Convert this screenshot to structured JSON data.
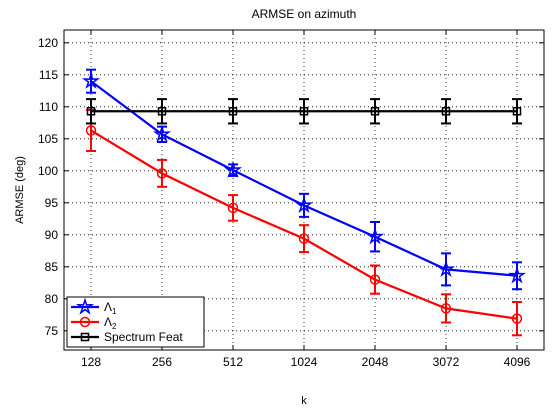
{
  "chart_data": {
    "type": "line",
    "title": "ARMSE on azimuth",
    "xlabel": "k",
    "ylabel": "ARMSE (deg)",
    "categories": [
      "128",
      "256",
      "512",
      "1024",
      "2048",
      "3072",
      "4096"
    ],
    "ylim": [
      72,
      122
    ],
    "yticks": [
      75,
      80,
      85,
      90,
      95,
      100,
      105,
      110,
      115,
      120
    ],
    "grid": true,
    "legend_position": "bottom-left",
    "series": [
      {
        "name": "Λ",
        "name_subscript": "1",
        "color": "#0000ff",
        "marker": "star",
        "values": [
          114.0,
          105.7,
          100.1,
          94.6,
          89.7,
          84.6,
          83.6
        ],
        "errors": [
          1.8,
          1.2,
          0.9,
          1.8,
          2.3,
          2.5,
          2.1
        ]
      },
      {
        "name": "Λ",
        "name_subscript": "2",
        "color": "#ff0000",
        "marker": "circle",
        "values": [
          106.3,
          99.6,
          94.2,
          89.4,
          83.0,
          78.5,
          76.9
        ],
        "errors": [
          3.2,
          2.1,
          2.0,
          2.1,
          2.2,
          2.2,
          2.6
        ]
      },
      {
        "name": "Spectrum Feat",
        "color": "#000000",
        "marker": "square",
        "values": [
          109.3,
          109.3,
          109.3,
          109.3,
          109.3,
          109.3,
          109.3
        ],
        "errors": [
          1.9,
          1.9,
          1.9,
          1.9,
          1.9,
          1.9,
          1.9
        ]
      }
    ]
  }
}
